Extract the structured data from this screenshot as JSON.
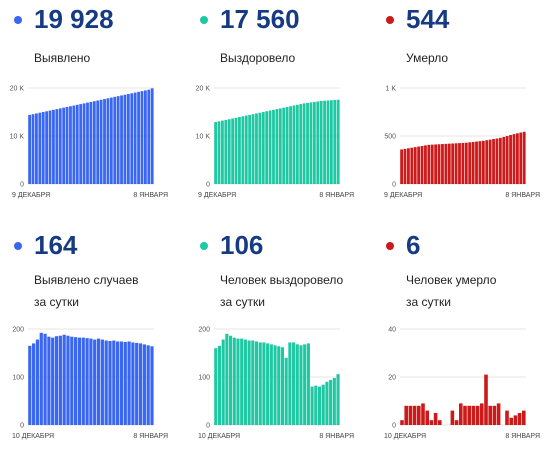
{
  "colors": {
    "blue": "#3a67f2",
    "green": "#1fc8a2",
    "red": "#cc1a1a",
    "headline": "#163b82"
  },
  "panels": [
    {
      "value": "19 928",
      "caption_lines": [
        "Выявлено"
      ],
      "color": "#3a67f2",
      "chart_data": {
        "type": "bar",
        "ylim": [
          0,
          20000
        ],
        "yticks": [
          0,
          10000,
          20000
        ],
        "yticklabels": [
          "0",
          "10 K",
          "20 K"
        ],
        "xlabel_start": "9 ДЕКАБРЯ",
        "xlabel_end": "8 ЯНВАРЯ",
        "values": [
          14400,
          14550,
          14700,
          14850,
          15000,
          15150,
          15300,
          15450,
          15600,
          15750,
          15900,
          16050,
          16200,
          16350,
          16500,
          16650,
          16800,
          16950,
          17100,
          17250,
          17400,
          17550,
          17700,
          17850,
          18000,
          18150,
          18300,
          18450,
          18600,
          18750,
          18900,
          19050,
          19200,
          19350,
          19500,
          19650,
          19928
        ]
      }
    },
    {
      "value": "17 560",
      "caption_lines": [
        "Выздоровело"
      ],
      "color": "#1fc8a2",
      "chart_data": {
        "type": "bar",
        "ylim": [
          0,
          20000
        ],
        "yticks": [
          0,
          10000,
          20000
        ],
        "yticklabels": [
          "0",
          "10 K",
          "20 K"
        ],
        "xlabel_start": "9 ДЕКАБРЯ",
        "xlabel_end": "8 ЯНВАРЯ",
        "values": [
          12900,
          13050,
          13200,
          13350,
          13500,
          13650,
          13800,
          13950,
          14100,
          14250,
          14400,
          14550,
          14700,
          14850,
          15000,
          15150,
          15300,
          15450,
          15600,
          15750,
          15900,
          16050,
          16200,
          16350,
          16500,
          16650,
          16800,
          16900,
          17000,
          17100,
          17200,
          17300,
          17350,
          17400,
          17450,
          17500,
          17560
        ]
      }
    },
    {
      "value": "544",
      "caption_lines": [
        "Умерло"
      ],
      "color": "#cc1a1a",
      "chart_data": {
        "type": "bar",
        "ylim": [
          0,
          1000
        ],
        "yticks": [
          0,
          500,
          1000
        ],
        "yticklabels": [
          "0",
          "500",
          "1 K"
        ],
        "xlabel_start": "9 ДЕКАБРЯ",
        "xlabel_end": "8 ЯНВАРЯ",
        "values": [
          360,
          366,
          372,
          378,
          384,
          390,
          396,
          402,
          408,
          410,
          412,
          414,
          416,
          418,
          420,
          422,
          424,
          426,
          428,
          430,
          434,
          438,
          442,
          446,
          450,
          456,
          462,
          468,
          474,
          480,
          490,
          500,
          510,
          520,
          528,
          536,
          544
        ]
      }
    },
    {
      "value": "164",
      "caption_lines": [
        "Выявлено случаев",
        "за сутки"
      ],
      "color": "#3a67f2",
      "chart_data": {
        "type": "bar",
        "ylim": [
          0,
          200
        ],
        "yticks": [
          0,
          100,
          200
        ],
        "yticklabels": [
          "0",
          "100",
          "200"
        ],
        "xlabel_start": "10 ДЕКАБРЯ",
        "xlabel_end": "8 ЯНВАРЯ",
        "values": [
          165,
          170,
          178,
          192,
          190,
          184,
          182,
          185,
          186,
          188,
          186,
          184,
          183,
          182,
          182,
          181,
          180,
          178,
          180,
          178,
          176,
          175,
          176,
          174,
          174,
          173,
          174,
          172,
          171,
          170,
          168,
          166,
          164
        ]
      }
    },
    {
      "value": "106",
      "caption_lines": [
        "Человек выздоровело",
        "за сутки"
      ],
      "color": "#1fc8a2",
      "chart_data": {
        "type": "bar",
        "ylim": [
          0,
          200
        ],
        "yticks": [
          0,
          100,
          200
        ],
        "yticklabels": [
          "0",
          "100",
          "200"
        ],
        "xlabel_start": "10 ДЕКАБРЯ",
        "xlabel_end": "8 ЯНВАРЯ",
        "values": [
          160,
          165,
          178,
          190,
          186,
          182,
          180,
          180,
          178,
          176,
          176,
          174,
          172,
          172,
          170,
          168,
          166,
          164,
          162,
          140,
          172,
          172,
          168,
          166,
          168,
          170,
          80,
          82,
          80,
          84,
          90,
          94,
          98,
          106
        ]
      }
    },
    {
      "value": "6",
      "caption_lines": [
        "Человек умерло",
        "за сутки"
      ],
      "color": "#cc1a1a",
      "chart_data": {
        "type": "bar",
        "ylim": [
          0,
          40
        ],
        "yticks": [
          0,
          20,
          40
        ],
        "yticklabels": [
          "0",
          "20",
          "40"
        ],
        "xlabel_start": "10 ДЕКАБРЯ",
        "xlabel_end": "8 ЯНВАРЯ",
        "values": [
          2,
          8,
          8,
          8,
          8,
          9,
          6,
          2,
          5,
          2,
          0,
          0,
          6,
          2,
          9,
          8,
          8,
          8,
          8,
          9,
          21,
          8,
          8,
          9,
          0,
          6,
          3,
          4,
          5,
          6
        ]
      }
    }
  ]
}
